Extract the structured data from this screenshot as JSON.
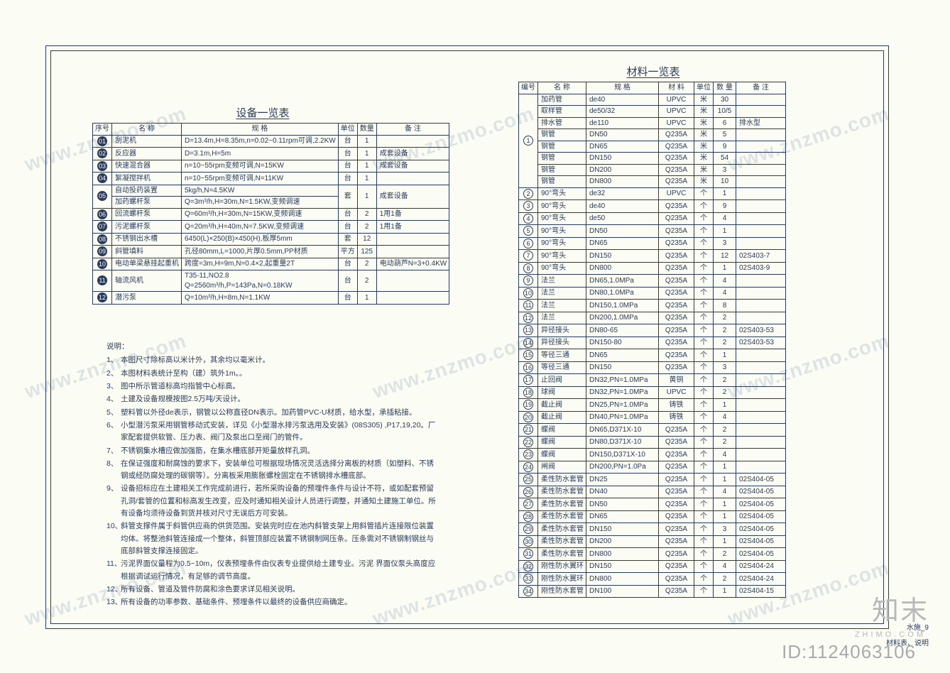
{
  "watermark_text": "www.znzmo.com",
  "logo_main": "知末",
  "logo_sub": "ZHIMO.COM",
  "id_text": "ID:1124063106",
  "sheet_label_1": "水施_9",
  "sheet_label_2": "材料表、说明",
  "equipment": {
    "title": "设备一览表",
    "headers": [
      "序号",
      "名 称",
      "规 格",
      "单位",
      "数量",
      "备 注"
    ],
    "rows": [
      {
        "no": "01",
        "solid": true,
        "name": "刮泥机",
        "spec": "D=13.4m,H=8.35m,n=0.02~0.11rpm可调,2.2KW",
        "unit": "台",
        "qty": "1",
        "remark": "",
        "rowspan_name": 1
      },
      {
        "no": "02",
        "solid": true,
        "name": "反应器",
        "spec": "D=3.1m,H=5m",
        "unit": "台",
        "qty": "1",
        "remark": "成套设备"
      },
      {
        "no": "03",
        "solid": true,
        "name": "快速混合器",
        "spec": "n=10~55rpm变频可调,N=15KW",
        "unit": "台",
        "qty": "1",
        "remark": "成套设备"
      },
      {
        "no": "04",
        "solid": true,
        "name": "絮凝搅拌机",
        "spec": "n=10~55rpm变频可调,N=11KW",
        "unit": "台",
        "qty": "1",
        "remark": ""
      },
      {
        "no": "05",
        "solid": true,
        "name": "自动投药装置",
        "spec": "5kg/h,N=4.5KW",
        "unit": "套",
        "qty": "1",
        "remark": "成套设备",
        "rowspan_cell": 2
      },
      {
        "no": "",
        "solid": true,
        "name": "加药螺杆泵",
        "spec": "Q=3m³/h,H=30m,N=1.5KW,变频调速",
        "unit": "",
        "qty": "",
        "remark": "",
        "skip_no": true,
        "skip_unit": true
      },
      {
        "no": "06",
        "solid": true,
        "name": "回流螺杆泵",
        "spec": "Q=60m³/h,H=30m,N=15KW,变频调速",
        "unit": "台",
        "qty": "2",
        "remark": "1用1备"
      },
      {
        "no": "07",
        "solid": true,
        "name": "污泥螺杆泵",
        "spec": "Q=20m³/h,H=40m,N=7.5KW,变频调速",
        "unit": "台",
        "qty": "2",
        "remark": "1用1备"
      },
      {
        "no": "08",
        "solid": true,
        "name": "不锈钢出水槽",
        "spec": "6450(L)×250(B)×450(H),板厚5mm",
        "unit": "套",
        "qty": "12",
        "remark": ""
      },
      {
        "no": "09",
        "solid": true,
        "name": "斜管填料",
        "spec": "孔径80mm,L=1000,片厚0.5mm,PP材质",
        "unit": "平方",
        "qty": "125",
        "remark": ""
      },
      {
        "no": "10",
        "solid": true,
        "name": "电动单梁悬挂起重机",
        "spec": "跨度=3m,H=9m,N=0.4×2,起重量2T",
        "unit": "台",
        "qty": "2",
        "remark": "电动葫芦N=3+0.4KW"
      },
      {
        "no": "11",
        "solid": true,
        "name": "轴流风机",
        "spec": "T35-11,NO2.8\nQ=2560m³/h,P=143Pa,N=0.18KW",
        "unit": "台",
        "qty": "2",
        "remark": "",
        "tall": true
      },
      {
        "no": "12",
        "solid": true,
        "name": "潜污泵",
        "spec": "Q=10m³/h,H=8m,N=1.1KW",
        "unit": "台",
        "qty": "1",
        "remark": ""
      }
    ]
  },
  "material": {
    "title": "材料一览表",
    "headers": [
      "编号",
      "名 称",
      "规 格",
      "材 料",
      "单位",
      "数 量",
      "备 注"
    ],
    "group1_no": "1",
    "group1_rows": [
      {
        "name": "加药管",
        "spec": "de40",
        "mat": "UPVC",
        "unit": "米",
        "qty": "30",
        "remark": ""
      },
      {
        "name": "取样管",
        "spec": "de50/32",
        "mat": "UPVC",
        "unit": "米",
        "qty": "10/5",
        "remark": ""
      },
      {
        "name": "排水管",
        "spec": "de110",
        "mat": "UPVC",
        "unit": "米",
        "qty": "6",
        "remark": "排水型"
      },
      {
        "name": "钢管",
        "spec": "DN50",
        "mat": "Q235A",
        "unit": "米",
        "qty": "5",
        "remark": ""
      },
      {
        "name": "钢管",
        "spec": "DN65",
        "mat": "Q235A",
        "unit": "米",
        "qty": "9",
        "remark": ""
      },
      {
        "name": "钢管",
        "spec": "DN150",
        "mat": "Q235A",
        "unit": "米",
        "qty": "54",
        "remark": ""
      },
      {
        "name": "钢管",
        "spec": "DN200",
        "mat": "Q235A",
        "unit": "米",
        "qty": "3",
        "remark": ""
      },
      {
        "name": "钢管",
        "spec": "DN800",
        "mat": "Q235A",
        "unit": "米",
        "qty": "10",
        "remark": ""
      }
    ],
    "rows": [
      {
        "no": "2",
        "name": "90°弯头",
        "spec": "de32",
        "mat": "UPVC",
        "unit": "个",
        "qty": "1",
        "remark": ""
      },
      {
        "no": "3",
        "name": "90°弯头",
        "spec": "de40",
        "mat": "Q235A",
        "unit": "个",
        "qty": "9",
        "remark": ""
      },
      {
        "no": "4",
        "name": "90°弯头",
        "spec": "de50",
        "mat": "Q235A",
        "unit": "个",
        "qty": "4",
        "remark": ""
      },
      {
        "no": "5",
        "name": "90°弯头",
        "spec": "DN50",
        "mat": "Q235A",
        "unit": "个",
        "qty": "1",
        "remark": ""
      },
      {
        "no": "6",
        "name": "90°弯头",
        "spec": "DN65",
        "mat": "Q235A",
        "unit": "个",
        "qty": "3",
        "remark": ""
      },
      {
        "no": "7",
        "name": "90°弯头",
        "spec": "DN150",
        "mat": "Q235A",
        "unit": "个",
        "qty": "12",
        "remark": "02S403-7"
      },
      {
        "no": "8",
        "name": "90°弯头",
        "spec": "DN800",
        "mat": "Q235A",
        "unit": "个",
        "qty": "1",
        "remark": "02S403-9"
      },
      {
        "no": "9",
        "name": "法兰",
        "spec": "DN65,1.0MPa",
        "mat": "Q235A",
        "unit": "个",
        "qty": "4",
        "remark": ""
      },
      {
        "no": "10",
        "name": "法兰",
        "spec": "DN80,1.0MPa",
        "mat": "Q235A",
        "unit": "个",
        "qty": "4",
        "remark": ""
      },
      {
        "no": "11",
        "name": "法兰",
        "spec": "DN150,1.0MPa",
        "mat": "Q235A",
        "unit": "个",
        "qty": "8",
        "remark": ""
      },
      {
        "no": "12",
        "name": "法兰",
        "spec": "DN200,1.0MPa",
        "mat": "Q235A",
        "unit": "个",
        "qty": "2",
        "remark": ""
      },
      {
        "no": "13",
        "name": "异径接头",
        "spec": "DN80-65",
        "mat": "Q235A",
        "unit": "个",
        "qty": "2",
        "remark": "02S403-53"
      },
      {
        "no": "14",
        "name": "异径接头",
        "spec": "DN150-80",
        "mat": "Q235A",
        "unit": "个",
        "qty": "2",
        "remark": "02S403-53"
      },
      {
        "no": "15",
        "name": "等径三通",
        "spec": "DN65",
        "mat": "Q235A",
        "unit": "个",
        "qty": "1",
        "remark": ""
      },
      {
        "no": "16",
        "name": "等径三通",
        "spec": "DN150",
        "mat": "Q235A",
        "unit": "个",
        "qty": "3",
        "remark": ""
      },
      {
        "no": "17",
        "name": "止回阀",
        "spec": "DN32,PN=1.0MPa",
        "mat": "黄铜",
        "unit": "个",
        "qty": "2",
        "remark": ""
      },
      {
        "no": "18",
        "name": "球阀",
        "spec": "DN32,PN=1.0MPa",
        "mat": "UPVC",
        "unit": "个",
        "qty": "2",
        "remark": ""
      },
      {
        "no": "19",
        "name": "截止阀",
        "spec": "DN25,PN=1.0MPa",
        "mat": "铸铁",
        "unit": "个",
        "qty": "1",
        "remark": ""
      },
      {
        "no": "20",
        "name": "截止阀",
        "spec": "DN40,PN=1.0MPa",
        "mat": "铸铁",
        "unit": "个",
        "qty": "4",
        "remark": ""
      },
      {
        "no": "21",
        "name": "蝶阀",
        "spec": "DN65,D371X-10",
        "mat": "Q235A",
        "unit": "个",
        "qty": "2",
        "remark": ""
      },
      {
        "no": "22",
        "name": "蝶阀",
        "spec": "DN80,D371X-10",
        "mat": "Q235A",
        "unit": "个",
        "qty": "2",
        "remark": ""
      },
      {
        "no": "23",
        "name": "蝶阀",
        "spec": "DN150,D371X-10",
        "mat": "Q235A",
        "unit": "个",
        "qty": "4",
        "remark": ""
      },
      {
        "no": "24",
        "name": "闸阀",
        "spec": "DN200,PN=1.0Pa",
        "mat": "Q235A",
        "unit": "个",
        "qty": "1",
        "remark": ""
      },
      {
        "no": "25",
        "name": "柔性防水套管",
        "spec": "DN25",
        "mat": "Q235A",
        "unit": "个",
        "qty": "1",
        "remark": "02S404-05"
      },
      {
        "no": "26",
        "name": "柔性防水套管",
        "spec": "DN40",
        "mat": "Q235A",
        "unit": "个",
        "qty": "4",
        "remark": "02S404-05"
      },
      {
        "no": "27",
        "name": "柔性防水套管",
        "spec": "DN50",
        "mat": "Q235A",
        "unit": "个",
        "qty": "1",
        "remark": "02S404-05"
      },
      {
        "no": "28",
        "name": "柔性防水套管",
        "spec": "DN65",
        "mat": "Q235A",
        "unit": "个",
        "qty": "1",
        "remark": "02S404-05"
      },
      {
        "no": "29",
        "name": "柔性防水套管",
        "spec": "DN150",
        "mat": "Q235A",
        "unit": "个",
        "qty": "3",
        "remark": "02S404-05"
      },
      {
        "no": "30",
        "name": "柔性防水套管",
        "spec": "DN200",
        "mat": "Q235A",
        "unit": "个",
        "qty": "1",
        "remark": "02S404-05"
      },
      {
        "no": "31",
        "name": "柔性防水套管",
        "spec": "DN800",
        "mat": "Q235A",
        "unit": "个",
        "qty": "2",
        "remark": "02S404-05"
      },
      {
        "no": "32",
        "name": "刚性防水翼环",
        "spec": "DN150",
        "mat": "Q235A",
        "unit": "个",
        "qty": "4",
        "remark": "02S404-24"
      },
      {
        "no": "33",
        "name": "刚性防水翼环",
        "spec": "DN800",
        "mat": "Q235A",
        "unit": "个",
        "qty": "2",
        "remark": "02S404-24"
      },
      {
        "no": "34",
        "name": "刚性防水套管",
        "spec": "DN100",
        "mat": "Q235A",
        "unit": "个",
        "qty": "1",
        "remark": "02S404-15"
      }
    ]
  },
  "notes": {
    "label": "说明：",
    "items": [
      "本图尺寸除标高以米计外，其余均以毫米计。",
      "本图材料表统计至构（建）筑外1m。。",
      "图中所示管道标高均指管中心标高。",
      "土建及设备规模按图2.5万吨/天设计。",
      "塑料管以外径de表示，钢管以公称直径DN表示。加药管PVC-U材质，给水型，承插粘接。",
      "小型潜污泵采用钢管移动式安装，详见《小型潜水排污泵选用及安装》(08S305) ,P17,19,20。厂家配套提供软管、压力表、阀门及泵出口至阀门的管件。",
      "不锈钢集水槽应做加强筋，在集水槽底部开矩量放样孔洞。",
      "在保证强度和耐腐蚀的要求下，安装单位可根据现场情况灵活选择分离板的材质（如塑料、不锈钢或经防腐处理的碳钢等）。分离板采用膨胀螺栓固定在不锈钢排水槽底部。",
      "设备招标应在土建相关工作完成前进行，若所采购设备的预埋件条件与设计不符，或如配套预留孔洞/套管的位置和标高发生改变，应及时通知相关设计人员进行调整，并通知土建施工单位。所有设备均须待设备到货并核对尺寸无误后方可安装。",
      "斜管支撑件属于斜管供应商的供货范围。安装完时应在池内斜管支架上用斜管插片连接限位装置均体。将整池斜管连接成一个整体，斜管顶部应装置不锈钢制网压条。压条需对不锈钢制钢丝与底部斜管支撑连接固定。",
      "污泥界面仪量程为0.5~10m，仪表预埋条件由仪表专业提供给土建专业。污泥 界面仪泵头高度应根据调试运行情况，有足够的调节高度。",
      "所有设备、管道及管件防腐和涂色要求详见相关说明。",
      "所有设备的功率参数、基础条件、预埋条件以最终的设备供应商确定。"
    ]
  }
}
